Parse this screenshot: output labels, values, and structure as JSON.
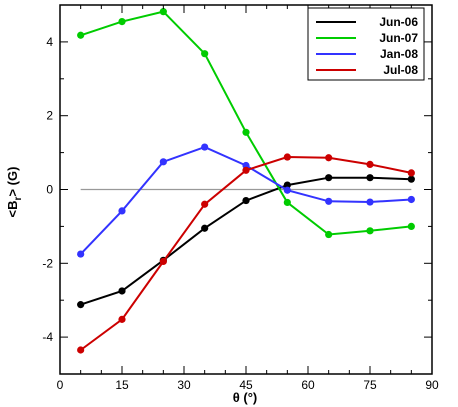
{
  "chart_data": {
    "type": "line",
    "title": "",
    "xlabel": "θ (°)",
    "ylabel": "<Br> (G)",
    "xlim": [
      0,
      90
    ],
    "ylim": [
      -5,
      5
    ],
    "xticks": [
      0,
      15,
      30,
      45,
      60,
      75,
      90
    ],
    "yticks": [
      -4,
      -2,
      0,
      2,
      4
    ],
    "grid": false,
    "reference_line": 0,
    "legend_position": "top-right",
    "x": [
      5,
      15,
      25,
      35,
      45,
      55,
      65,
      75,
      85
    ],
    "series": [
      {
        "name": "Jun-06",
        "color": "#000000",
        "values": [
          -3.12,
          -2.75,
          -1.92,
          -1.05,
          -0.3,
          0.12,
          0.32,
          0.32,
          0.28
        ]
      },
      {
        "name": "Jun-07",
        "color": "#00cc00",
        "values": [
          4.18,
          4.55,
          4.82,
          3.68,
          1.55,
          -0.35,
          -1.22,
          -1.12,
          -1.0
        ]
      },
      {
        "name": "Jan-08",
        "color": "#3333ff",
        "values": [
          -1.75,
          -0.58,
          0.75,
          1.15,
          0.65,
          -0.02,
          -0.32,
          -0.34,
          -0.27
        ]
      },
      {
        "name": "Jul-08",
        "color": "#cc0000",
        "values": [
          -4.35,
          -3.52,
          -1.95,
          -0.4,
          0.52,
          0.88,
          0.86,
          0.68,
          0.45
        ]
      }
    ]
  }
}
